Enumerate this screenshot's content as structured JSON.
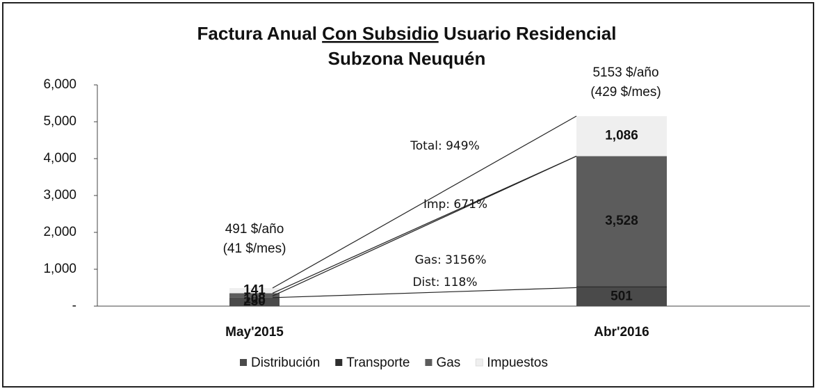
{
  "chart_data": {
    "type": "stacked_bar",
    "title": [
      "Factura Anual",
      "Con Subsidio",
      "Usuario Residencial",
      "Subzona Neuquén"
    ],
    "categories": [
      "May'2015",
      "Abr'2016"
    ],
    "series": [
      {
        "name": "Distribución",
        "color": "#4a4a4a",
        "values": [
          230,
          501
        ]
      },
      {
        "name": "Transporte",
        "color": "#2e2e2e",
        "values": [
          12,
          38
        ]
      },
      {
        "name": "Gas",
        "color": "#5c5c5c",
        "values": [
          108,
          3528
        ],
        "value_labels": [
          "108",
          "3,528"
        ]
      },
      {
        "name": "Impuestos",
        "color": "#efefef",
        "values": [
          141,
          1086
        ],
        "value_labels": [
          "141",
          "1,086"
        ]
      }
    ],
    "totals": [
      {
        "year": "491 $/año",
        "month": "(41 $/mes)"
      },
      {
        "year": "5153 $/año",
        "month": "(429 $/mes)"
      }
    ],
    "annotations": [
      "Total: 949%",
      "Imp: 671%",
      "Gas: 3156%",
      "Dist: 118%"
    ],
    "ylim": [
      0,
      6000
    ],
    "yticks": [
      {
        "value": 0,
        "label": "-"
      },
      {
        "value": 1000,
        "label": "1,000"
      },
      {
        "value": 2000,
        "label": "2,000"
      },
      {
        "value": 3000,
        "label": "3,000"
      },
      {
        "value": 4000,
        "label": "4,000"
      },
      {
        "value": 5000,
        "label": "5,000"
      },
      {
        "value": 6000,
        "label": "6,000"
      }
    ],
    "legend": "bottom"
  }
}
